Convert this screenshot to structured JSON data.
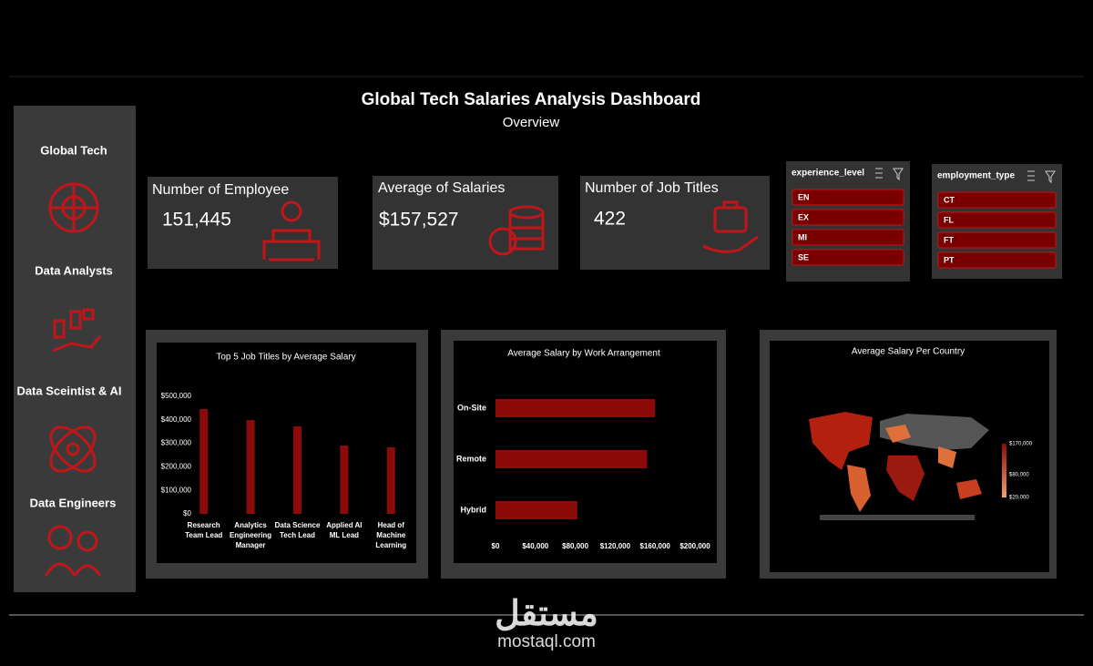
{
  "header": {
    "title": "Global Tech  Salaries Analysis Dashboard",
    "subtitle": "Overview"
  },
  "sidebar": {
    "items": [
      "Global Tech",
      "Data Analysts",
      "Data Sceintist & AI",
      "Data Engineers"
    ]
  },
  "kpis": [
    {
      "label": "Number of Employee",
      "value": "151,445"
    },
    {
      "label": "Average of Salaries",
      "value": "$157,527"
    },
    {
      "label": "Number of Job Titles",
      "value": "422"
    }
  ],
  "slicers": [
    {
      "title": "experience_level",
      "items": [
        "EN",
        "EX",
        "MI",
        "SE"
      ]
    },
    {
      "title": "employment_type",
      "items": [
        "CT",
        "FL",
        "FT",
        "PT"
      ]
    }
  ],
  "chart_data": [
    {
      "type": "bar",
      "title": "Top 5 Job Titles by Average Salary",
      "categories": [
        "Research Team Lead",
        "Analytics Engineering Manager",
        "Data Science Tech Lead",
        "Applied AI ML Lead",
        "Head of Machine Learning"
      ],
      "values": [
        446000,
        399000,
        372000,
        291000,
        283000
      ],
      "color": "#8b0a0a",
      "ylim": [
        0,
        500000
      ],
      "yticks": [
        {
          "value": 0,
          "label": "$0"
        },
        {
          "value": 100000,
          "label": "$100,000"
        },
        {
          "value": 200000,
          "label": "$200,000"
        },
        {
          "value": 300000,
          "label": "$300,000"
        },
        {
          "value": 400000,
          "label": "$400,000"
        },
        {
          "value": 500000,
          "label": "$500,000"
        }
      ],
      "grid": false
    },
    {
      "type": "barh",
      "title": "Average Salary by Work Arrangement",
      "categories": [
        "On-Site",
        "Remote",
        "Hybrid"
      ],
      "values": [
        160000,
        152000,
        82000
      ],
      "color": "#8b0a0a",
      "xlim": [
        0,
        200000
      ],
      "xticks": [
        {
          "value": 0,
          "label": "$0"
        },
        {
          "value": 40000,
          "label": "$40,000"
        },
        {
          "value": 80000,
          "label": "$80,000"
        },
        {
          "value": 120000,
          "label": "$120,000"
        },
        {
          "value": 160000,
          "label": "$160,000"
        },
        {
          "value": 200000,
          "label": "$200,000"
        }
      ],
      "grid": false
    }
  ],
  "map": {
    "title": "Average Salary Per Country",
    "legend": [
      "$170,000",
      "$80,000",
      "$20,000"
    ]
  },
  "watermark": {
    "brand": "مستقل",
    "url": "mostaql.com"
  }
}
